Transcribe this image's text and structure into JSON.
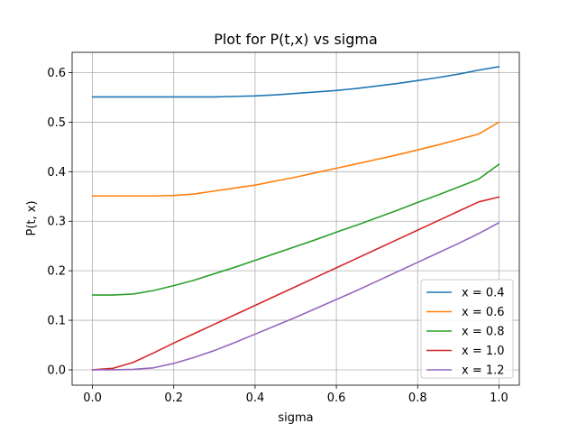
{
  "chart_data": {
    "type": "line",
    "title": "Plot for P(t,x) vs sigma",
    "xlabel": "sigma",
    "ylabel": "P(t, x)",
    "xlim": [
      -0.05,
      1.05
    ],
    "ylim": [
      -0.031,
      0.641
    ],
    "xticks": [
      0.0,
      0.2,
      0.4,
      0.6,
      0.8,
      1.0
    ],
    "xtick_labels": [
      "0.0",
      "0.2",
      "0.4",
      "0.6",
      "0.8",
      "1.0"
    ],
    "yticks": [
      0.0,
      0.1,
      0.2,
      0.3,
      0.4,
      0.5,
      0.6
    ],
    "ytick_labels": [
      "0.0",
      "0.1",
      "0.2",
      "0.3",
      "0.4",
      "0.5",
      "0.6"
    ],
    "grid": true,
    "legend_position": "lower right",
    "x": [
      0.0,
      0.05,
      0.1,
      0.15,
      0.2,
      0.25,
      0.3,
      0.35,
      0.4,
      0.45,
      0.5,
      0.55,
      0.6,
      0.65,
      0.7,
      0.75,
      0.8,
      0.85,
      0.9,
      0.95,
      1.0
    ],
    "series": [
      {
        "name": "x = 0.4",
        "color": "#1f77b4",
        "values": [
          0.551,
          0.551,
          0.551,
          0.551,
          0.551,
          0.551,
          0.551,
          0.552,
          0.553,
          0.555,
          0.558,
          0.561,
          0.564,
          0.568,
          0.573,
          0.578,
          0.584,
          0.59,
          0.597,
          0.605,
          0.612
        ]
      },
      {
        "name": "x = 0.6",
        "color": "#ff7f0e",
        "values": [
          0.351,
          0.351,
          0.351,
          0.351,
          0.352,
          0.355,
          0.361,
          0.367,
          0.373,
          0.381,
          0.389,
          0.398,
          0.407,
          0.416,
          0.425,
          0.434,
          0.444,
          0.454,
          0.465,
          0.476,
          0.5
        ]
      },
      {
        "name": "x = 0.8",
        "color": "#2ca02c",
        "values": [
          0.151,
          0.151,
          0.153,
          0.16,
          0.17,
          0.181,
          0.194,
          0.207,
          0.221,
          0.235,
          0.249,
          0.263,
          0.278,
          0.292,
          0.307,
          0.322,
          0.338,
          0.353,
          0.369,
          0.385,
          0.415
        ]
      },
      {
        "name": "x = 1.0",
        "color": "#d62728",
        "values": [
          0.0,
          0.003,
          0.015,
          0.034,
          0.054,
          0.073,
          0.092,
          0.111,
          0.13,
          0.149,
          0.168,
          0.187,
          0.206,
          0.225,
          0.244,
          0.263,
          0.282,
          0.301,
          0.32,
          0.339,
          0.349
        ]
      },
      {
        "name": "x = 1.2",
        "color": "#9467bd",
        "values": [
          0.0,
          0.0,
          0.001,
          0.004,
          0.013,
          0.025,
          0.039,
          0.055,
          0.072,
          0.089,
          0.106,
          0.124,
          0.142,
          0.16,
          0.179,
          0.198,
          0.217,
          0.236,
          0.255,
          0.275,
          0.297
        ]
      }
    ]
  }
}
